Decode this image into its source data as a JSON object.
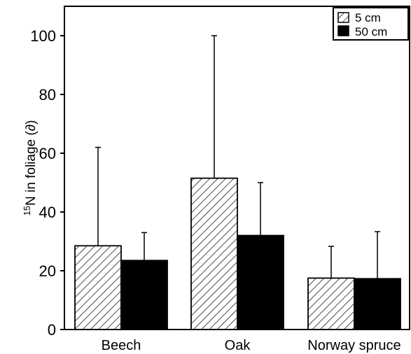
{
  "chart_data": {
    "type": "bar",
    "categories": [
      "Beech",
      "Oak",
      "Norway spruce"
    ],
    "series": [
      {
        "name": "5 cm",
        "values": [
          28.5,
          51.5,
          17.5
        ],
        "error": [
          33.5,
          48.5,
          10.8
        ],
        "pattern": "hatched"
      },
      {
        "name": "50 cm",
        "values": [
          23.5,
          32,
          17.3
        ],
        "error": [
          9.5,
          18,
          16
        ],
        "pattern": "solid"
      }
    ],
    "ylabel_sup": "15",
    "ylabel_main": "N in foliage (∂)",
    "ylim": [
      0,
      110
    ],
    "yticks": [
      "0",
      "20",
      "40",
      "60",
      "80",
      "100"
    ],
    "ytick_values": [
      0,
      20,
      40,
      60,
      80,
      100
    ],
    "legend_position": "top-right",
    "colors": {
      "solid": "#000000",
      "hatch": "#000000",
      "background": "#ffffff"
    }
  }
}
